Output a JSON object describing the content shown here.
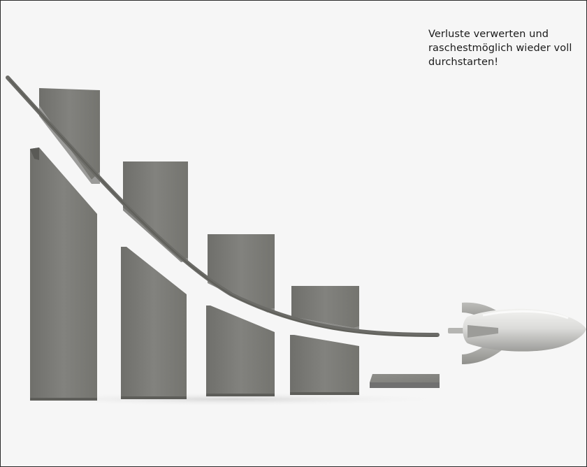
{
  "caption": {
    "text": "Verluste verwerten und raschestmöglich wieder voll durchstarten!"
  },
  "scene": {
    "description_icon": "rocket-icon",
    "colors": {
      "background": "#f6f6f6",
      "bar_front": "#7a7a76",
      "bar_side": "#5e5e5a",
      "bar_top": "#8a8a86",
      "trail": "#6b6b67",
      "rocket_body": "#e4e4e2",
      "rocket_fins": "#a9a9a6",
      "border": "#2b2b2b"
    }
  }
}
